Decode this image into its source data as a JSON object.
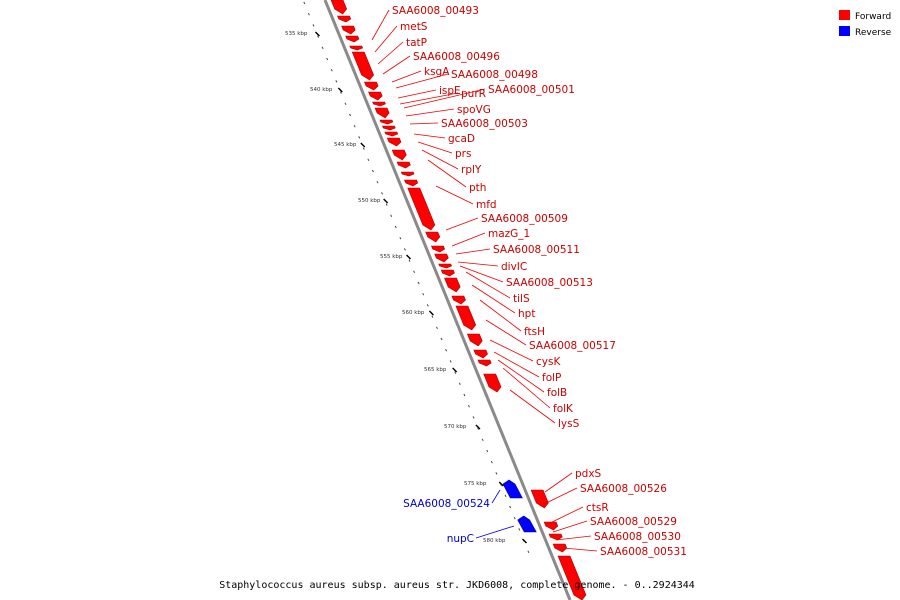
{
  "caption": "Staphylococcus aureus subsp. aureus str. JKD6008, complete genome. - 0..2924344",
  "legend": [
    {
      "label": "Forward",
      "color": "#ff0000"
    },
    {
      "label": "Reverse",
      "color": "#0000ff"
    }
  ],
  "kbp_ticks": [
    "535 kbp",
    "540 kbp",
    "545 kbp",
    "550 kbp",
    "555 kbp",
    "560 kbp",
    "565 kbp",
    "570 kbp",
    "575 kbp",
    "580 kbp"
  ],
  "forward_labels": [
    "SAA6008_00493",
    "metS",
    "tatP",
    "SAA6008_00496",
    "ksgA",
    "SAA6008_00498",
    "ispE",
    "purR",
    "SAA6008_00501",
    "spoVG",
    "SAA6008_00503",
    "gcaD",
    "prs",
    "rplY",
    "pth",
    "mfd",
    "SAA6008_00509",
    "mazG_1",
    "SAA6008_00511",
    "divIC",
    "SAA6008_00513",
    "tilS",
    "hpt",
    "ftsH",
    "SAA6008_00517",
    "cysK",
    "folP",
    "folB",
    "folK",
    "lysS",
    "pdxS",
    "SAA6008_00526",
    "ctsR",
    "SAA6008_00529",
    "SAA6008_00530",
    "SAA6008_00531"
  ],
  "reverse_labels": [
    "SAA6008_00524",
    "nupC"
  ]
}
